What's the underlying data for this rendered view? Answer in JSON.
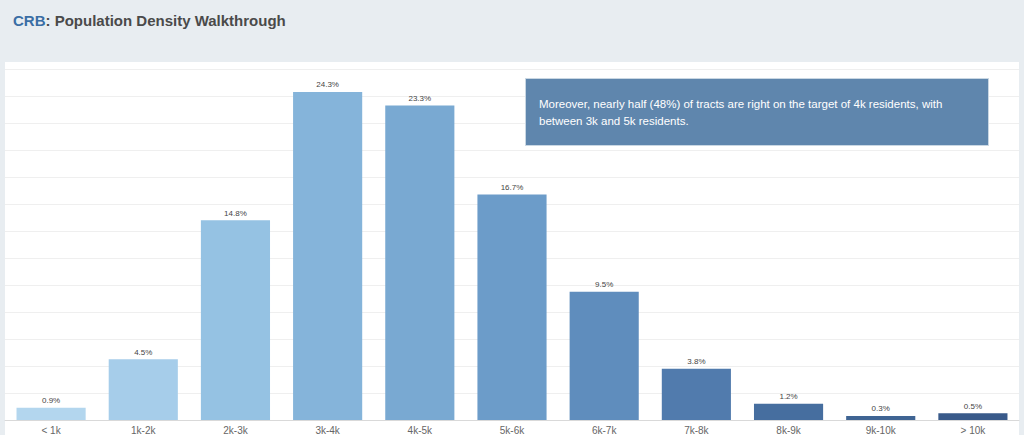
{
  "chart_data": {
    "type": "bar",
    "title": "CRB: Population Density Walkthrough",
    "annotation": "Moreover, nearly half (48%) of tracts are right on the target of 4k residents, with between 3k and 5k residents.",
    "categories": [
      "< 1k",
      "1k-2k",
      "2k-3k",
      "3k-4k",
      "4k-5k",
      "5k-6k",
      "6k-7k",
      "7k-8k",
      "8k-9k",
      "9k-10k",
      "> 10k"
    ],
    "values": [
      0.9,
      4.5,
      14.8,
      24.3,
      23.3,
      16.7,
      9.5,
      3.8,
      1.2,
      0.3,
      0.5
    ],
    "value_labels": [
      "0.9%",
      "4.5%",
      "14.8%",
      "24.3%",
      "23.3%",
      "16.7%",
      "9.5%",
      "3.8%",
      "1.2%",
      "0.3%",
      "0.5%"
    ],
    "colors": [
      "#b3d6ee",
      "#a6cdea",
      "#95c2e3",
      "#85b4da",
      "#79a9d2",
      "#6c9cc9",
      "#5f8dbd",
      "#517bad",
      "#466e9f",
      "#3f6493",
      "#395a8a"
    ],
    "ylim": [
      0,
      26
    ],
    "yticks": [
      0,
      2,
      4,
      6,
      8,
      10,
      12,
      14,
      16,
      18,
      20,
      22,
      24,
      26
    ],
    "grid": true,
    "data_labels": true,
    "tick_labels": "x"
  }
}
